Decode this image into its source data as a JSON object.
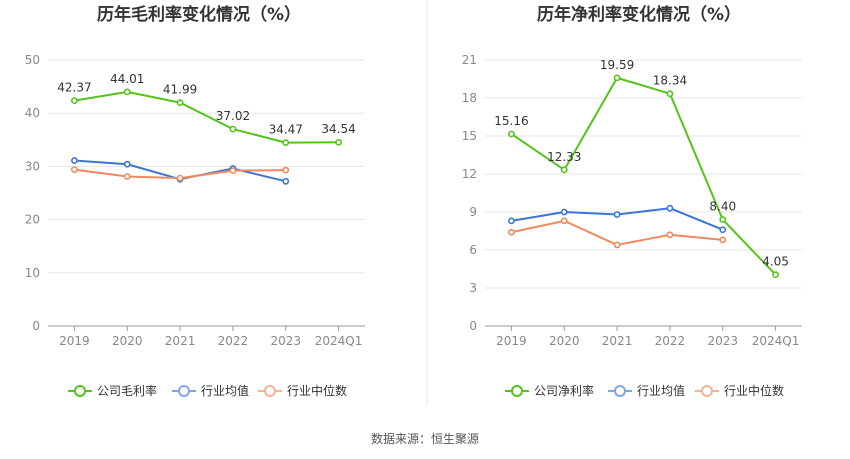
{
  "source_text": "数据来源：恒生聚源",
  "chart_data": [
    {
      "type": "line",
      "title": "历年毛利率变化情况（%）",
      "categories": [
        "2019",
        "2020",
        "2021",
        "2022",
        "2023",
        "2024Q1"
      ],
      "ylim": [
        0,
        50
      ],
      "yticks": [
        0,
        10,
        20,
        30,
        40,
        50
      ],
      "grid": true,
      "legend_position": "bottom",
      "series": [
        {
          "name": "公司毛利率",
          "color": "#52c41a",
          "values": [
            42.37,
            44.01,
            41.99,
            37.02,
            34.47,
            34.54
          ],
          "labels": [
            "42.37",
            "44.01",
            "41.99",
            "37.02",
            "34.47",
            "34.54"
          ]
        },
        {
          "name": "行业均值",
          "color": "#3a75d8",
          "values": [
            31.1,
            30.4,
            27.6,
            29.6,
            27.2,
            null
          ]
        },
        {
          "name": "行业中位数",
          "color": "#f08a5d",
          "values": [
            29.4,
            28.1,
            27.8,
            29.2,
            29.3,
            null
          ]
        }
      ]
    },
    {
      "type": "line",
      "title": "历年净利率变化情况（%）",
      "categories": [
        "2019",
        "2020",
        "2021",
        "2022",
        "2023",
        "2024Q1"
      ],
      "ylim": [
        0,
        21
      ],
      "yticks": [
        0,
        3,
        6,
        9,
        12,
        15,
        18,
        21
      ],
      "grid": true,
      "legend_position": "bottom",
      "series": [
        {
          "name": "公司净利率",
          "color": "#52c41a",
          "values": [
            15.16,
            12.33,
            19.59,
            18.34,
            8.4,
            4.05
          ],
          "labels": [
            "15.16",
            "12.33",
            "19.59",
            "18.34",
            "8.40",
            "4.05"
          ]
        },
        {
          "name": "行业均值",
          "color": "#3a75d8",
          "values": [
            8.3,
            9.0,
            8.8,
            9.3,
            7.6,
            null
          ]
        },
        {
          "name": "行业中位数",
          "color": "#f08a5d",
          "values": [
            7.4,
            8.3,
            6.4,
            7.2,
            6.8,
            null
          ]
        }
      ]
    }
  ]
}
